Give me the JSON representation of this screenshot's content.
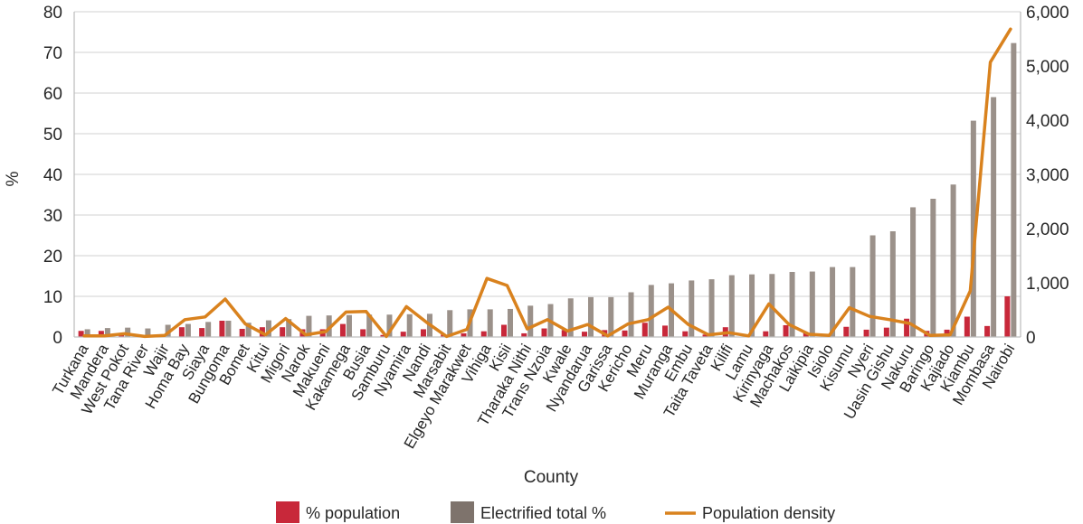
{
  "chart_data": {
    "type": "bar",
    "xlabel": "County",
    "ylabel": "%",
    "ylim": [
      0,
      80
    ],
    "y2lim": [
      0,
      6000
    ],
    "yticks": [
      "0",
      "10",
      "20",
      "30",
      "40",
      "50",
      "60",
      "70",
      "80"
    ],
    "y2ticks": [
      "0",
      "1,000",
      "2,000",
      "3,000",
      "4,000",
      "5,000",
      "6,000"
    ],
    "grid": true,
    "legend_position": "bottom",
    "categories": [
      "Turkana",
      "Mandera",
      "West Pokot",
      "Tana River",
      "Wajir",
      "Homa Bay",
      "Siaya",
      "Bungoma",
      "Bomet",
      "Kitui",
      "Migori",
      "Narok",
      "Makueni",
      "Kakamega",
      "Busia",
      "Samburu",
      "Nyamira",
      "Nandi",
      "Marsabit",
      "Elgeyo Marakwet",
      "Vihiga",
      "Kisii",
      "Tharaka Nithi",
      "Trans Nzoia",
      "Kwale",
      "Nyandarua",
      "Garissa",
      "Kericho",
      "Meru",
      "Muranga",
      "Embu",
      "Taita Taveta",
      "Kilifi",
      "Lamu",
      "Kirinyaga",
      "Machakos",
      "Laikipia",
      "Isiolo",
      "Kisumu",
      "Nyeri",
      "Uasin Gishu",
      "Nakuru",
      "Baringo",
      "Kajiado",
      "Kiambu",
      "Mombasa",
      "Nairobi"
    ],
    "series": [
      {
        "name": "% population",
        "type": "bar",
        "axis": "left",
        "color": "#c8283a",
        "values": [
          1.5,
          1.5,
          0.7,
          0.5,
          0.6,
          2.4,
          2.2,
          4.0,
          2.0,
          2.4,
          2.4,
          1.9,
          1.9,
          3.2,
          1.9,
          0.5,
          1.3,
          1.9,
          0.6,
          0.9,
          1.4,
          3.0,
          0.9,
          2.1,
          1.7,
          1.3,
          1.7,
          1.6,
          3.5,
          2.8,
          1.4,
          0.6,
          2.4,
          0.3,
          1.4,
          2.9,
          1.0,
          0.4,
          2.5,
          1.8,
          2.3,
          4.5,
          1.5,
          1.8,
          5.0,
          2.7,
          10.0
        ]
      },
      {
        "name": "Electrified total %",
        "type": "bar",
        "axis": "left",
        "color": "#9b918a",
        "values": [
          1.9,
          2.2,
          2.3,
          2.1,
          3.0,
          3.2,
          3.7,
          4.0,
          3.5,
          4.1,
          4.4,
          5.2,
          5.3,
          5.4,
          5.5,
          5.5,
          5.6,
          5.7,
          6.6,
          6.8,
          6.8,
          6.9,
          7.7,
          8.1,
          9.5,
          9.8,
          9.8,
          11.0,
          12.8,
          13.2,
          13.9,
          14.2,
          15.2,
          15.4,
          15.5,
          16.0,
          16.1,
          17.2,
          17.2,
          25.0,
          26.0,
          31.9,
          34.0,
          37.5,
          53.2,
          59.0,
          72.3
        ]
      },
      {
        "name": "Population density",
        "type": "line",
        "axis": "right",
        "color": "#d9821e",
        "values": [
          20,
          20,
          60,
          10,
          30,
          320,
          370,
          700,
          240,
          40,
          340,
          40,
          100,
          460,
          470,
          10,
          560,
          270,
          10,
          140,
          1080,
          950,
          150,
          320,
          110,
          230,
          20,
          240,
          320,
          550,
          230,
          40,
          80,
          20,
          610,
          230,
          50,
          30,
          540,
          380,
          320,
          250,
          30,
          40,
          850,
          5070,
          5680
        ]
      }
    ]
  }
}
